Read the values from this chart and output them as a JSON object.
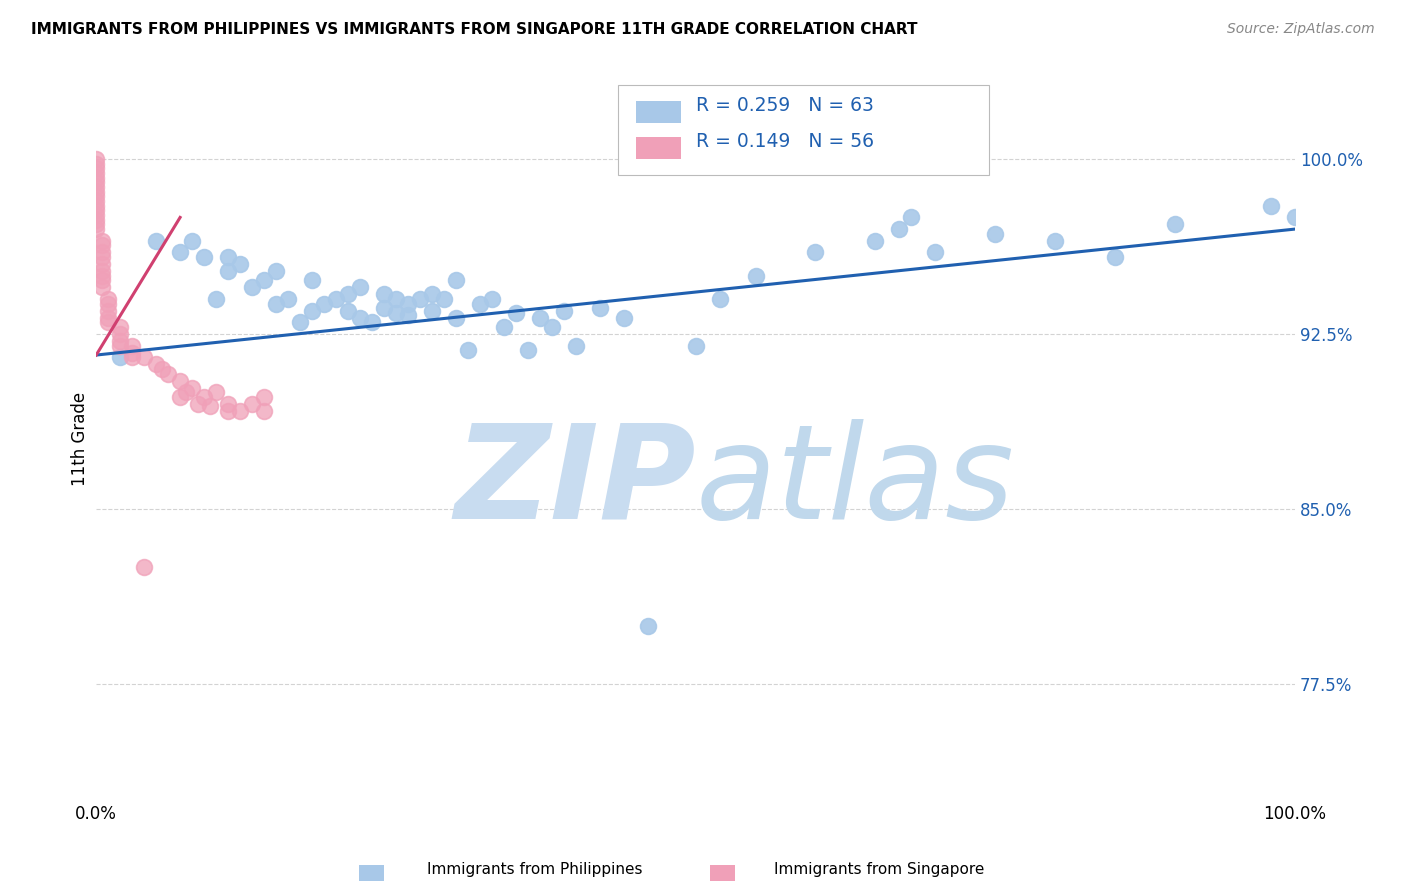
{
  "title": "IMMIGRANTS FROM PHILIPPINES VS IMMIGRANTS FROM SINGAPORE 11TH GRADE CORRELATION CHART",
  "source": "Source: ZipAtlas.com",
  "ylabel": "11th Grade",
  "y_tick_labels": [
    "77.5%",
    "85.0%",
    "92.5%",
    "100.0%"
  ],
  "y_tick_values": [
    0.775,
    0.85,
    0.925,
    1.0
  ],
  "x_lim": [
    0.0,
    1.0
  ],
  "y_lim": [
    0.725,
    1.035
  ],
  "legend_r1": "R = 0.259",
  "legend_n1": "N = 63",
  "legend_r2": "R = 0.149",
  "legend_n2": "N = 56",
  "color_philippines": "#a8c8e8",
  "color_singapore": "#f0a0b8",
  "trendline_color": "#2060b0",
  "trendline_sing_color": "#d04070",
  "watermark_color": "#ddeeff",
  "philippines_x": [
    0.02,
    0.05,
    0.07,
    0.08,
    0.09,
    0.1,
    0.11,
    0.11,
    0.12,
    0.13,
    0.14,
    0.15,
    0.15,
    0.16,
    0.17,
    0.18,
    0.18,
    0.19,
    0.2,
    0.21,
    0.21,
    0.22,
    0.22,
    0.23,
    0.24,
    0.24,
    0.25,
    0.25,
    0.26,
    0.26,
    0.27,
    0.28,
    0.28,
    0.29,
    0.3,
    0.3,
    0.31,
    0.32,
    0.33,
    0.34,
    0.35,
    0.36,
    0.37,
    0.38,
    0.39,
    0.4,
    0.42,
    0.44,
    0.46,
    0.5,
    0.52,
    0.55,
    0.6,
    0.65,
    0.67,
    0.68,
    0.7,
    0.75,
    0.8,
    0.85,
    0.9,
    0.98,
    1.0
  ],
  "philippines_y": [
    0.915,
    0.965,
    0.96,
    0.965,
    0.958,
    0.94,
    0.952,
    0.958,
    0.955,
    0.945,
    0.948,
    0.938,
    0.952,
    0.94,
    0.93,
    0.948,
    0.935,
    0.938,
    0.94,
    0.935,
    0.942,
    0.932,
    0.945,
    0.93,
    0.936,
    0.942,
    0.934,
    0.94,
    0.933,
    0.938,
    0.94,
    0.942,
    0.935,
    0.94,
    0.948,
    0.932,
    0.918,
    0.938,
    0.94,
    0.928,
    0.934,
    0.918,
    0.932,
    0.928,
    0.935,
    0.92,
    0.936,
    0.932,
    0.8,
    0.92,
    0.94,
    0.95,
    0.96,
    0.965,
    0.97,
    0.975,
    0.96,
    0.968,
    0.965,
    0.958,
    0.972,
    0.98,
    0.975
  ],
  "singapore_x": [
    0.0,
    0.0,
    0.0,
    0.0,
    0.0,
    0.0,
    0.0,
    0.0,
    0.0,
    0.0,
    0.0,
    0.0,
    0.0,
    0.0,
    0.0,
    0.0,
    0.005,
    0.005,
    0.005,
    0.005,
    0.005,
    0.005,
    0.005,
    0.005,
    0.005,
    0.01,
    0.01,
    0.01,
    0.01,
    0.01,
    0.02,
    0.02,
    0.02,
    0.02,
    0.03,
    0.03,
    0.03,
    0.04,
    0.04,
    0.05,
    0.055,
    0.06,
    0.07,
    0.07,
    0.075,
    0.08,
    0.085,
    0.09,
    0.095,
    0.1,
    0.11,
    0.11,
    0.12,
    0.13,
    0.14,
    0.14
  ],
  "singapore_y": [
    1.0,
    0.998,
    0.996,
    0.994,
    0.992,
    0.99,
    0.988,
    0.986,
    0.984,
    0.982,
    0.98,
    0.978,
    0.976,
    0.974,
    0.972,
    0.97,
    0.965,
    0.963,
    0.96,
    0.958,
    0.955,
    0.952,
    0.95,
    0.948,
    0.945,
    0.94,
    0.938,
    0.935,
    0.932,
    0.93,
    0.928,
    0.925,
    0.922,
    0.92,
    0.92,
    0.917,
    0.915,
    0.915,
    0.825,
    0.912,
    0.91,
    0.908,
    0.905,
    0.898,
    0.9,
    0.902,
    0.895,
    0.898,
    0.894,
    0.9,
    0.895,
    0.892,
    0.892,
    0.895,
    0.892,
    0.898
  ],
  "phil_trend_x": [
    0.0,
    1.0
  ],
  "phil_trend_y": [
    0.916,
    0.97
  ],
  "sing_trend_x": [
    0.0,
    0.07
  ],
  "sing_trend_y": [
    0.916,
    0.975
  ]
}
